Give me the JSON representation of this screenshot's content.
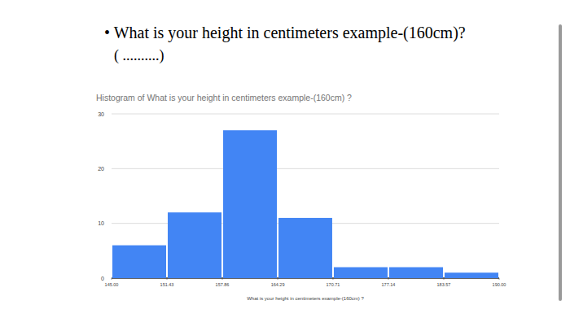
{
  "page": {
    "question": "• What is your height in centimeters example-(160cm)?",
    "answer_blank": "( ..........)"
  },
  "chart_data": {
    "type": "histogram",
    "title": "Histogram of What is your height in centimeters example-(160cm) ?",
    "x_label": "What is your height in centimeters example-(160cm) ?",
    "bins": [
      145,
      151.43,
      157.86,
      164.29,
      170.71,
      177.14,
      183.57,
      190
    ],
    "values": [
      6,
      12,
      27,
      11,
      2,
      2,
      1
    ],
    "color": "#4285f4",
    "xlim": [
      145,
      190
    ],
    "xticks": [
      {
        "value": 145,
        "label": "145.00"
      },
      151.43,
      157.86,
      164.29,
      170.71,
      177.14,
      183.57,
      {
        "value": 190,
        "label": "190.00"
      }
    ],
    "ylim": [
      0,
      30
    ],
    "yticks": [
      0,
      10,
      20,
      30
    ],
    "grid": true
  }
}
